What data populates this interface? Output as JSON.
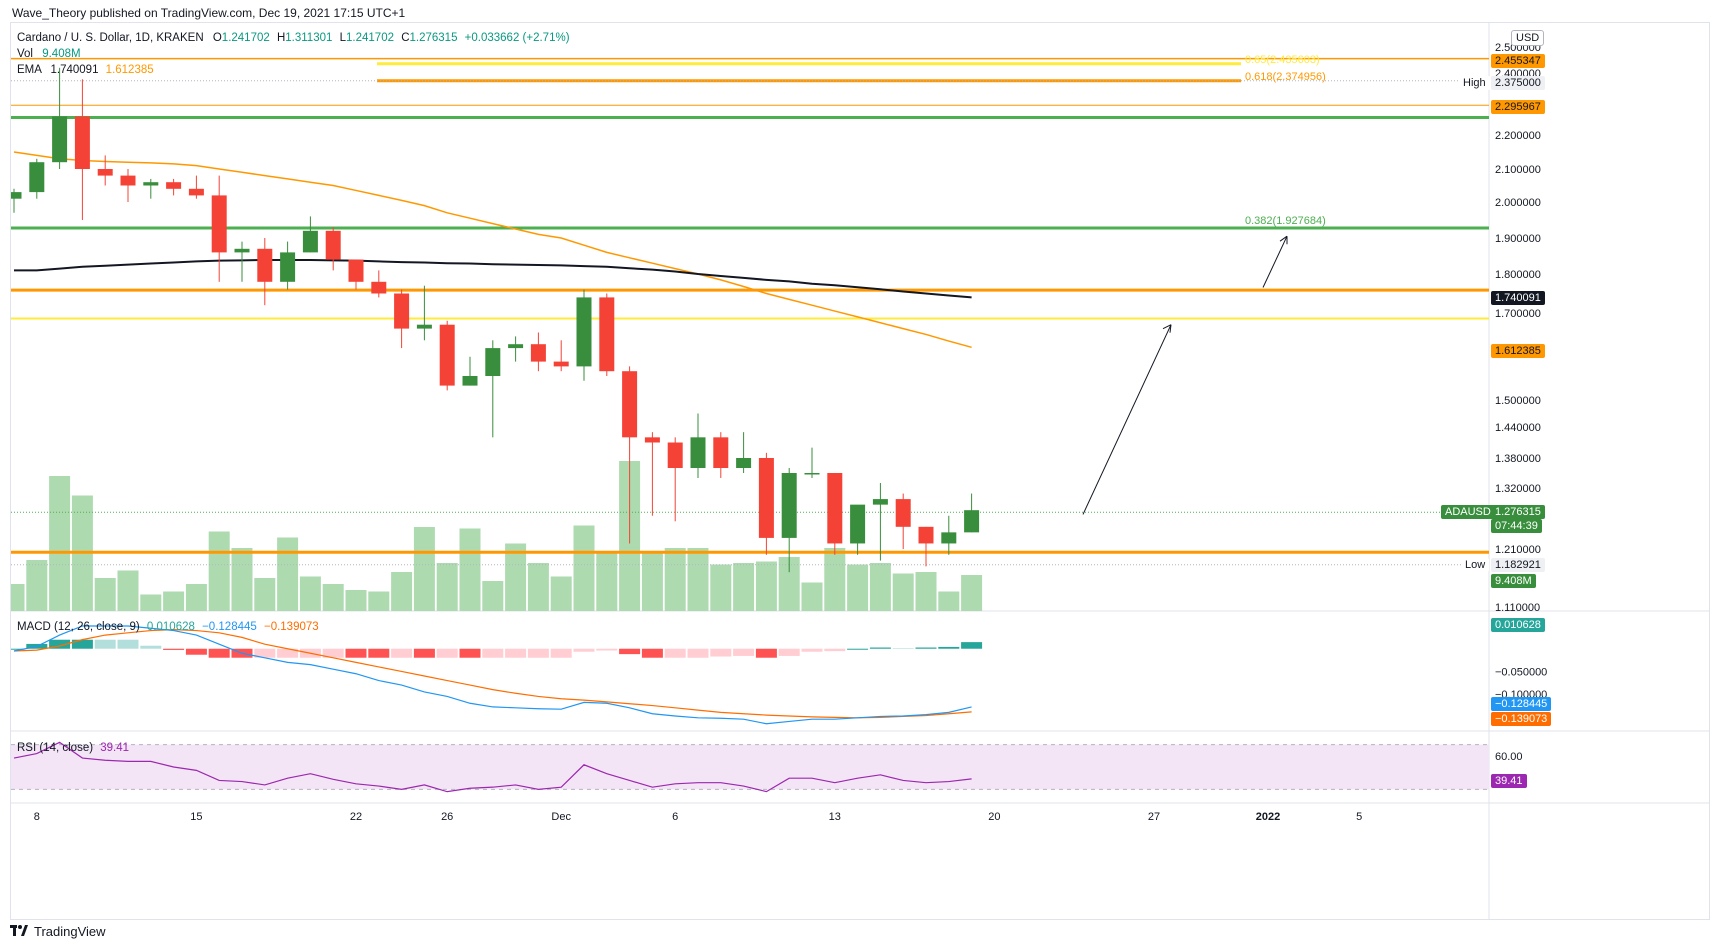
{
  "publisher_line": "Wave_Theory published on TradingView.com, Dec 19, 2021 17:15 UTC+1",
  "brand": "TradingView",
  "currency": "USD",
  "symbol": {
    "title": "Cardano / U. S. Dollar, 1D, KRAKEN",
    "o_label": "O",
    "o": "1.241702",
    "h_label": "H",
    "h": "1.311301",
    "l_label": "L",
    "l": "1.241702",
    "c_label": "C",
    "c": "1.276315",
    "change": "+0.033662 (+2.71%)"
  },
  "vol_legend": {
    "label": "Vol",
    "value": "9.408M"
  },
  "ema_legend": {
    "label": "EMA",
    "v1": "1.740091",
    "v2": "1.612385"
  },
  "macd_legend": {
    "label": "MACD (12, 26, close, 9)",
    "v1": "0.010628",
    "v2": "−0.128445",
    "v3": "−0.139073"
  },
  "rsi_legend": {
    "label": "RSI (14, close)",
    "value": "39.41"
  },
  "price_tags": {
    "t2455": "2.455347",
    "t2375": "2.375000",
    "high_label": "High",
    "t2296": "2.295967",
    "t1740": "1.740091",
    "t1612": "1.612385",
    "adausd_label": "ADAUSD",
    "last": "1.276315",
    "countdown": "07:44:39",
    "low_label": "Low",
    "low": "1.182921",
    "vol": "9.408M",
    "macd": "0.010628",
    "macd_sig": "−0.128445",
    "macd_hist": "−0.139073",
    "rsi": "39.41"
  },
  "fib_labels": {
    "f065": "0.65(2.435603)",
    "f0618": "0.618(2.374956)",
    "f0382": "0.382(1.927684)"
  },
  "colors": {
    "up": "#26a69a",
    "down": "#ef5350",
    "green_candle": "#388e3c",
    "red_candle": "#f44336",
    "orange": "#ff9800",
    "yellow": "#ffeb3b",
    "green_line": "#4caf50",
    "rsi_band": "#f3e5f5",
    "macd_line": "#2196f3",
    "signal_line": "#ff6d00"
  },
  "chart_data": {
    "type": "candlestick",
    "timeframe": "1D",
    "dates": [
      "Nov 7",
      "Nov 8",
      "Nov 9",
      "Nov 10",
      "Nov 11",
      "Nov 12",
      "Nov 13",
      "Nov 14",
      "Nov 15",
      "Nov 16",
      "Nov 17",
      "Nov 18",
      "Nov 19",
      "Nov 20",
      "Nov 21",
      "Nov 22",
      "Nov 23",
      "Nov 24",
      "Nov 25",
      "Nov 26",
      "Nov 27",
      "Nov 28",
      "Nov 29",
      "Nov 30",
      "Dec 1",
      "Dec 2",
      "Dec 3",
      "Dec 4",
      "Dec 5",
      "Dec 6",
      "Dec 7",
      "Dec 8",
      "Dec 9",
      "Dec 10",
      "Dec 11",
      "Dec 12",
      "Dec 13",
      "Dec 14",
      "Dec 15",
      "Dec 16",
      "Dec 17",
      "Dec 18",
      "Dec 19"
    ],
    "ohlc": [
      [
        2.01,
        2.04,
        1.97,
        2.03
      ],
      [
        2.03,
        2.13,
        2.01,
        2.12
      ],
      [
        2.12,
        2.42,
        2.1,
        2.26
      ],
      [
        2.26,
        2.38,
        1.95,
        2.1
      ],
      [
        2.1,
        2.14,
        2.05,
        2.08
      ],
      [
        2.08,
        2.1,
        2.0,
        2.05
      ],
      [
        2.05,
        2.07,
        2.01,
        2.06
      ],
      [
        2.06,
        2.07,
        2.02,
        2.04
      ],
      [
        2.04,
        2.08,
        2.01,
        2.02
      ],
      [
        2.02,
        2.08,
        1.78,
        1.86
      ],
      [
        1.86,
        1.89,
        1.78,
        1.87
      ],
      [
        1.87,
        1.9,
        1.72,
        1.78
      ],
      [
        1.78,
        1.89,
        1.76,
        1.86
      ],
      [
        1.86,
        1.96,
        1.86,
        1.92
      ],
      [
        1.92,
        1.93,
        1.81,
        1.84
      ],
      [
        1.84,
        1.84,
        1.76,
        1.78
      ],
      [
        1.78,
        1.81,
        1.74,
        1.75
      ],
      [
        1.75,
        1.76,
        1.61,
        1.66
      ],
      [
        1.66,
        1.77,
        1.63,
        1.67
      ],
      [
        1.67,
        1.68,
        1.52,
        1.53
      ],
      [
        1.53,
        1.59,
        1.53,
        1.55
      ],
      [
        1.55,
        1.63,
        1.42,
        1.61
      ],
      [
        1.61,
        1.64,
        1.58,
        1.62
      ],
      [
        1.62,
        1.65,
        1.56,
        1.58
      ],
      [
        1.58,
        1.63,
        1.56,
        1.57
      ],
      [
        1.57,
        1.76,
        1.54,
        1.74
      ],
      [
        1.74,
        1.75,
        1.55,
        1.56
      ],
      [
        1.56,
        1.57,
        1.22,
        1.42
      ],
      [
        1.42,
        1.43,
        1.27,
        1.41
      ],
      [
        1.41,
        1.42,
        1.26,
        1.36
      ],
      [
        1.36,
        1.47,
        1.34,
        1.42
      ],
      [
        1.42,
        1.43,
        1.34,
        1.36
      ],
      [
        1.36,
        1.43,
        1.35,
        1.38
      ],
      [
        1.38,
        1.39,
        1.2,
        1.23
      ],
      [
        1.23,
        1.36,
        1.17,
        1.35
      ],
      [
        1.35,
        1.4,
        1.34,
        1.35
      ],
      [
        1.35,
        1.35,
        1.2,
        1.22
      ],
      [
        1.22,
        1.28,
        1.2,
        1.29
      ],
      [
        1.29,
        1.33,
        1.19,
        1.3
      ],
      [
        1.3,
        1.31,
        1.21,
        1.25
      ],
      [
        1.25,
        1.25,
        1.18,
        1.22
      ],
      [
        1.22,
        1.27,
        1.2,
        1.24
      ],
      [
        1.24,
        1.31,
        1.24,
        1.28
      ]
    ],
    "volume_relative": [
      0.18,
      0.34,
      0.9,
      0.77,
      0.22,
      0.27,
      0.11,
      0.13,
      0.18,
      0.53,
      0.42,
      0.22,
      0.49,
      0.23,
      0.18,
      0.14,
      0.13,
      0.26,
      0.56,
      0.32,
      0.55,
      0.2,
      0.45,
      0.32,
      0.23,
      0.57,
      0.4,
      1.0,
      0.39,
      0.42,
      0.42,
      0.31,
      0.32,
      0.33,
      0.36,
      0.19,
      0.42,
      0.31,
      0.32,
      0.25,
      0.26,
      0.13,
      0.24
    ],
    "ema_200": [
      1.81,
      1.81,
      1.815,
      1.82,
      1.823,
      1.826,
      1.829,
      1.832,
      1.835,
      1.837,
      1.838,
      1.839,
      1.839,
      1.839,
      1.838,
      1.837,
      1.835,
      1.833,
      1.832,
      1.83,
      1.829,
      1.827,
      1.826,
      1.825,
      1.824,
      1.822,
      1.82,
      1.816,
      1.812,
      1.807,
      1.8,
      1.795,
      1.79,
      1.785,
      1.781,
      1.775,
      1.771,
      1.766,
      1.761,
      1.755,
      1.75,
      1.745,
      1.74
    ],
    "ema_50": [
      2.15,
      2.14,
      2.13,
      2.125,
      2.122,
      2.12,
      2.118,
      2.115,
      2.11,
      2.1,
      2.09,
      2.08,
      2.07,
      2.06,
      2.05,
      2.035,
      2.02,
      2.005,
      1.99,
      1.97,
      1.955,
      1.94,
      1.925,
      1.91,
      1.9,
      1.88,
      1.86,
      1.845,
      1.83,
      1.815,
      1.8,
      1.785,
      1.768,
      1.75,
      1.735,
      1.72,
      1.705,
      1.69,
      1.675,
      1.66,
      1.645,
      1.628,
      1.612
    ],
    "macd_line": [
      -0.005,
      0.005,
      0.03,
      0.05,
      0.05,
      0.05,
      0.045,
      0.04,
      0.03,
      0.01,
      -0.01,
      -0.02,
      -0.03,
      -0.035,
      -0.045,
      -0.055,
      -0.07,
      -0.08,
      -0.095,
      -0.105,
      -0.12,
      -0.128,
      -0.13,
      -0.132,
      -0.133,
      -0.118,
      -0.12,
      -0.13,
      -0.143,
      -0.148,
      -0.152,
      -0.153,
      -0.155,
      -0.165,
      -0.16,
      -0.155,
      -0.155,
      -0.152,
      -0.149,
      -0.148,
      -0.145,
      -0.14,
      -0.128
    ],
    "signal_line": [
      -0.005,
      -0.003,
      0.006,
      0.02,
      0.03,
      0.035,
      0.04,
      0.042,
      0.04,
      0.035,
      0.025,
      0.01,
      0.0,
      -0.01,
      -0.02,
      -0.03,
      -0.04,
      -0.05,
      -0.06,
      -0.07,
      -0.08,
      -0.09,
      -0.098,
      -0.105,
      -0.11,
      -0.113,
      -0.117,
      -0.121,
      -0.125,
      -0.13,
      -0.135,
      -0.14,
      -0.143,
      -0.146,
      -0.148,
      -0.15,
      -0.151,
      -0.152,
      -0.151,
      -0.149,
      -0.147,
      -0.143,
      -0.139
    ],
    "rsi": [
      58,
      62,
      72,
      58,
      56,
      55,
      55,
      50,
      47,
      38,
      37,
      34,
      40,
      44,
      39,
      35,
      33,
      30,
      34,
      28,
      31,
      32,
      34,
      30,
      32,
      52,
      44,
      38,
      32,
      35,
      36,
      36,
      33,
      28,
      40,
      40,
      36,
      40,
      43,
      38,
      36,
      37,
      39.41
    ],
    "horizontal_levels": [
      {
        "price": 2.455347,
        "color": "#ff9800"
      },
      {
        "price": 2.295967,
        "color": "#ff9800"
      },
      {
        "price": 2.2566,
        "color": "#4caf50"
      },
      {
        "price": 1.927684,
        "color": "#4caf50"
      },
      {
        "price": 1.7585,
        "color": "#ff9800"
      },
      {
        "price": 1.686,
        "color": "#ffeb3b"
      },
      {
        "price": 1.2045,
        "color": "#ff9800"
      }
    ],
    "price_axis_ticks": [
      "2.500000",
      "2.400000",
      "2.200000",
      "2.100000",
      "2.000000",
      "1.900000",
      "1.800000",
      "1.700000",
      "1.500000",
      "1.440000",
      "1.380000",
      "1.320000",
      "1.210000",
      "1.110000"
    ],
    "time_axis_ticks": [
      "8",
      "15",
      "22",
      "26",
      "Dec",
      "6",
      "13",
      "20",
      "27",
      "2022",
      "5"
    ],
    "macd_axis_ticks": [
      "−0.050000",
      "−0.100000"
    ],
    "rsi_axis_ticks": [
      "60.00"
    ]
  }
}
